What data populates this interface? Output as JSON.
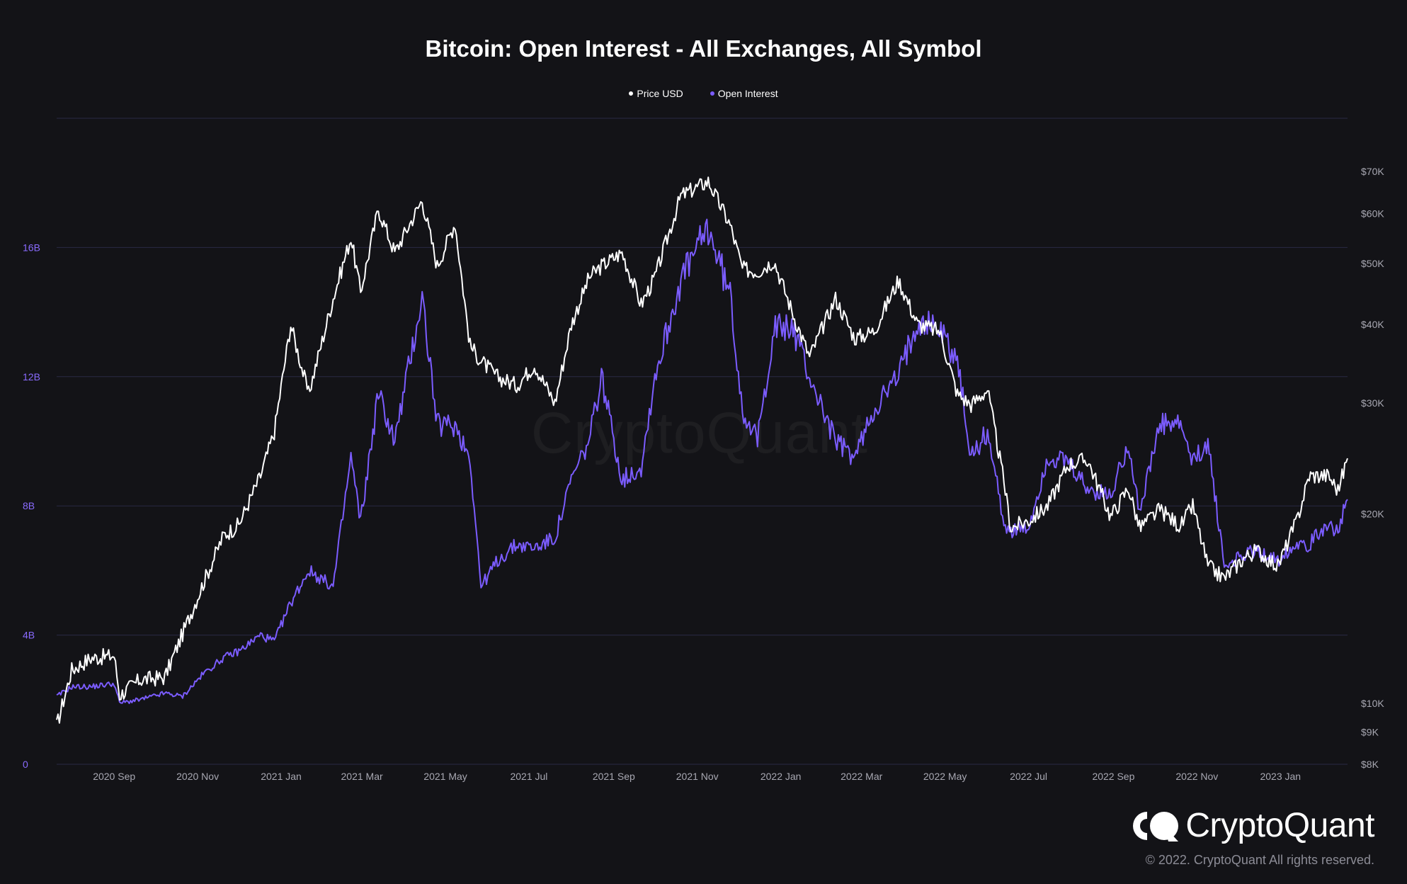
{
  "chart_data": {
    "type": "line",
    "title": "Bitcoin: Open Interest - All Exchanges, All Symbol",
    "legend": {
      "placement": "top-center",
      "entries": [
        "Price USD",
        "Open Interest"
      ]
    },
    "grid": true,
    "x_ticks": [
      "2020 Sep",
      "2020 Nov",
      "2021 Jan",
      "2021 Mar",
      "2021 May",
      "2021 Jul",
      "2021 Sep",
      "2021 Nov",
      "2022 Jan",
      "2022 Mar",
      "2022 May",
      "2022 Jul",
      "2022 Sep",
      "2022 Nov",
      "2023 Jan"
    ],
    "x_range": [
      "2020-07-21",
      "2023-02-19"
    ],
    "y_left": {
      "ticks": [
        "0",
        "4B",
        "8B",
        "12B",
        "16B"
      ],
      "tick_values": [
        0,
        4,
        8,
        12,
        16
      ],
      "range": [
        0,
        20
      ]
    },
    "y_right": {
      "scale": "log",
      "ticks": [
        "$8K",
        "$9K",
        "$10K",
        "$20K",
        "$30K",
        "$40K",
        "$50K",
        "$60K",
        "$70K"
      ],
      "tick_values": [
        8000,
        9000,
        10000,
        20000,
        30000,
        40000,
        50000,
        60000,
        70000
      ],
      "range": [
        8000,
        85000
      ]
    },
    "series": [
      {
        "name": "Price USD",
        "color": "#ffffff",
        "axis": "right",
        "x": [
          "2020-07-21",
          "2020-08-01",
          "2020-08-15",
          "2020-09-01",
          "2020-09-05",
          "2020-09-20",
          "2020-10-08",
          "2020-10-21",
          "2020-11-05",
          "2020-11-20",
          "2020-12-01",
          "2020-12-17",
          "2020-12-27",
          "2021-01-08",
          "2021-01-21",
          "2021-02-08",
          "2021-02-21",
          "2021-02-28",
          "2021-03-13",
          "2021-03-25",
          "2021-04-14",
          "2021-04-25",
          "2021-05-08",
          "2021-05-19",
          "2021-05-27",
          "2021-06-08",
          "2021-06-22",
          "2021-07-05",
          "2021-07-20",
          "2021-08-01",
          "2021-08-14",
          "2021-08-23",
          "2021-09-07",
          "2021-09-21",
          "2021-10-01",
          "2021-10-20",
          "2021-11-09",
          "2021-11-25",
          "2021-12-04",
          "2021-12-15",
          "2021-12-27",
          "2022-01-10",
          "2022-01-22",
          "2022-02-10",
          "2022-02-24",
          "2022-03-10",
          "2022-03-28",
          "2022-04-11",
          "2022-04-27",
          "2022-05-10",
          "2022-05-20",
          "2022-06-01",
          "2022-06-13",
          "2022-06-18",
          "2022-07-01",
          "2022-07-15",
          "2022-07-30",
          "2022-08-13",
          "2022-08-30",
          "2022-09-12",
          "2022-09-20",
          "2022-10-05",
          "2022-10-20",
          "2022-10-29",
          "2022-11-09",
          "2022-11-21",
          "2022-12-05",
          "2022-12-15",
          "2022-12-30",
          "2023-01-13",
          "2023-01-22",
          "2023-02-05",
          "2023-02-12",
          "2023-02-19"
        ],
        "values": [
          9200,
          11300,
          11800,
          11900,
          10300,
          10900,
          11000,
          12900,
          15500,
          18500,
          19200,
          23000,
          27000,
          40000,
          31000,
          44000,
          55000,
          45000,
          61000,
          52000,
          63000,
          49500,
          58000,
          37000,
          35000,
          33000,
          32000,
          34500,
          30000,
          40000,
          47500,
          49500,
          52000,
          43000,
          47500,
          64000,
          67500,
          57500,
          49000,
          48500,
          50500,
          41500,
          35500,
          44000,
          38000,
          39000,
          47000,
          40000,
          39000,
          31000,
          29800,
          31500,
          22500,
          19000,
          19500,
          20600,
          24000,
          24400,
          19800,
          22000,
          19000,
          20300,
          19100,
          20600,
          16500,
          15800,
          17000,
          17500,
          16500,
          19500,
          23000,
          23000,
          21800,
          24500
        ]
      },
      {
        "name": "Open Interest",
        "color": "#7b5cff",
        "axis": "left",
        "x": [
          "2020-07-21",
          "2020-08-01",
          "2020-08-15",
          "2020-09-01",
          "2020-09-05",
          "2020-09-20",
          "2020-10-08",
          "2020-10-21",
          "2020-11-05",
          "2020-11-20",
          "2020-12-01",
          "2020-12-17",
          "2020-12-27",
          "2021-01-08",
          "2021-01-21",
          "2021-02-08",
          "2021-02-21",
          "2021-02-28",
          "2021-03-13",
          "2021-03-25",
          "2021-04-14",
          "2021-04-25",
          "2021-05-08",
          "2021-05-19",
          "2021-05-27",
          "2021-06-08",
          "2021-06-22",
          "2021-07-05",
          "2021-07-20",
          "2021-08-01",
          "2021-08-14",
          "2021-08-23",
          "2021-09-07",
          "2021-09-21",
          "2021-10-01",
          "2021-10-20",
          "2021-11-09",
          "2021-11-25",
          "2021-12-04",
          "2021-12-15",
          "2021-12-27",
          "2022-01-10",
          "2022-01-22",
          "2022-02-10",
          "2022-02-24",
          "2022-03-10",
          "2022-03-28",
          "2022-04-11",
          "2022-04-27",
          "2022-05-10",
          "2022-05-20",
          "2022-06-01",
          "2022-06-13",
          "2022-06-18",
          "2022-07-01",
          "2022-07-15",
          "2022-07-30",
          "2022-08-13",
          "2022-08-30",
          "2022-09-12",
          "2022-09-20",
          "2022-10-05",
          "2022-10-20",
          "2022-10-29",
          "2022-11-09",
          "2022-11-21",
          "2022-12-05",
          "2022-12-15",
          "2022-12-30",
          "2023-01-13",
          "2023-01-22",
          "2023-02-05",
          "2023-02-12",
          "2023-02-19"
        ],
        "values": [
          2.1,
          2.4,
          2.4,
          2.5,
          1.9,
          2.0,
          2.2,
          2.1,
          2.8,
          3.3,
          3.5,
          4.0,
          3.8,
          5.0,
          6.0,
          5.5,
          9.5,
          7.5,
          11.5,
          10.0,
          14.5,
          10.5,
          10.5,
          9.5,
          5.5,
          6.3,
          6.8,
          6.7,
          7.0,
          8.8,
          10.0,
          12.0,
          8.8,
          9.2,
          12.0,
          15.0,
          16.6,
          14.5,
          11.0,
          10.0,
          13.5,
          13.5,
          12.0,
          10.0,
          9.5,
          11.0,
          12.0,
          13.8,
          13.5,
          12.5,
          9.5,
          10.3,
          7.5,
          7.2,
          7.3,
          9.5,
          9.3,
          8.5,
          8.3,
          10.0,
          7.8,
          10.5,
          10.5,
          9.3,
          10.0,
          6.1,
          6.5,
          6.6,
          6.3,
          6.9,
          6.8,
          7.5,
          7.2,
          8.2
        ]
      }
    ]
  },
  "watermark": "CryptoQuant",
  "brand": {
    "name": "CryptoQuant",
    "copyright": "© 2022. CryptoQuant All rights reserved."
  }
}
